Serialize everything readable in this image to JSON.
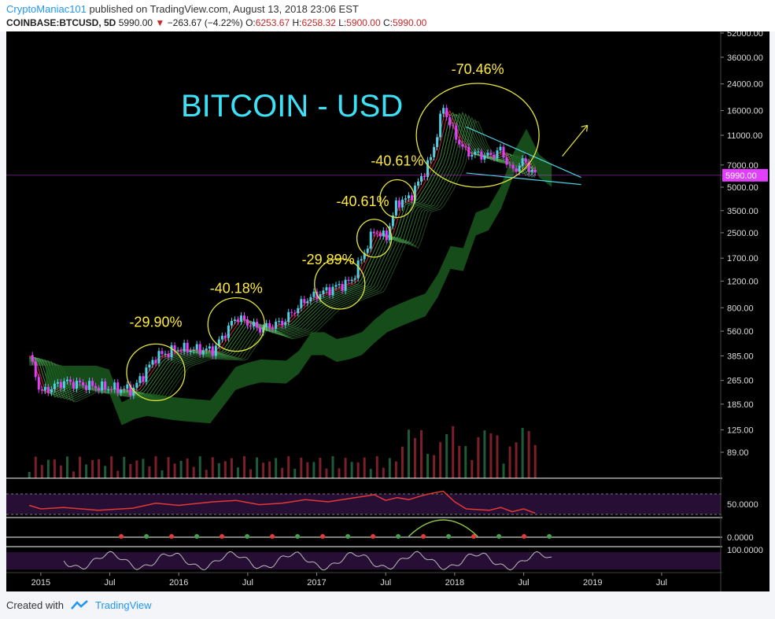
{
  "header": {
    "author": "CryptoManiac101",
    "published_text": " published on TradingView.com, August 13, 2018 23:06 EST",
    "symbol": "COINBASE:BTCUSD, 5D",
    "last": "5990.00",
    "change": "−263.67 (−4.22%)",
    "open_label": "O:",
    "open": "6253.67",
    "high_label": "H:",
    "high": "6258.32",
    "low_label": "L:",
    "low": "5900.00",
    "close_label": "C:",
    "close": "5990.00"
  },
  "footer": {
    "created_with": "Created with",
    "brand": "TradingView"
  },
  "colors": {
    "background": "#000000",
    "candle_up": "#4dd0e1",
    "candle_down": "#e040fb",
    "ema_ribbon": "#4caf50",
    "annotation": "#ffeb3b",
    "title": "#3ee0f5",
    "rsi_line": "#e53935",
    "price_tag": "#e040fb",
    "trendline": "#4dd0e1"
  },
  "chart_data": {
    "type": "candlestick",
    "title": "BITCOIN - USD",
    "y_scale": "log",
    "y_ticks": [
      "52000.00",
      "36000.00",
      "24000.00",
      "16000.00",
      "11000.00",
      "7000.00",
      "5000.00",
      "3500.00",
      "2500.00",
      "1700.00",
      "1200.00",
      "800.00",
      "560.00",
      "385.00",
      "265.00",
      "185.00",
      "125.00",
      "89.00"
    ],
    "y_tick_values": [
      52000,
      36000,
      24000,
      16000,
      11000,
      7000,
      5000,
      3500,
      2500,
      1700,
      1200,
      800,
      560,
      385,
      265,
      185,
      125,
      89
    ],
    "ylim": [
      60,
      52000
    ],
    "x_labels": [
      "2015",
      "Jul",
      "2016",
      "Jul",
      "2017",
      "Jul",
      "2018",
      "Jul",
      "2019",
      "Jul"
    ],
    "x_label_dates": [
      "2015-01",
      "2015-07",
      "2016-01",
      "2016-07",
      "2017-01",
      "2017-07",
      "2018-01",
      "2018-07",
      "2019-01",
      "2019-07"
    ],
    "last_price_tag": "5990.00",
    "last_price": 5990,
    "price_path": {
      "dates": [
        "2014-12",
        "2015-01",
        "2015-03",
        "2015-06",
        "2015-09",
        "2015-11",
        "2016-01",
        "2016-04",
        "2016-06",
        "2016-08",
        "2016-10",
        "2016-12",
        "2017-02",
        "2017-04",
        "2017-06",
        "2017-07",
        "2017-08",
        "2017-09",
        "2017-10",
        "2017-11",
        "2017-12",
        "2018-01",
        "2018-02",
        "2018-04",
        "2018-05",
        "2018-06",
        "2018-07",
        "2018-08"
      ],
      "values": [
        390,
        220,
        260,
        240,
        230,
        380,
        430,
        420,
        700,
        580,
        640,
        900,
        1050,
        1200,
        2600,
        2300,
        4000,
        4200,
        5600,
        8000,
        17000,
        11000,
        8500,
        8000,
        8800,
        6300,
        7500,
        5990
      ]
    },
    "annotations": [
      {
        "text": "-29.90%",
        "date": "2015-11",
        "price": 600
      },
      {
        "text": "-40.18%",
        "date": "2016-06",
        "price": 1000
      },
      {
        "text": "-29.89%",
        "date": "2017-02",
        "price": 1550
      },
      {
        "text": "-40.61%",
        "date": "2017-05",
        "price": 3750
      },
      {
        "text": "-40.61%",
        "date": "2017-08",
        "price": 6950
      },
      {
        "text": "-70.46%",
        "date": "2018-03",
        "price": 28000
      }
    ],
    "indicators": {
      "rsi_ticks": [
        "50.0000"
      ],
      "rsi": [
        55,
        50,
        52,
        48,
        51,
        58,
        55,
        60,
        62,
        56,
        58,
        63,
        60,
        65,
        70,
        62,
        66,
        63,
        68,
        72,
        75,
        60,
        50,
        48,
        52,
        46,
        50,
        44
      ],
      "macd_ticks": [
        "0.0000"
      ],
      "stoch_ticks": [
        "100.0000"
      ]
    }
  }
}
